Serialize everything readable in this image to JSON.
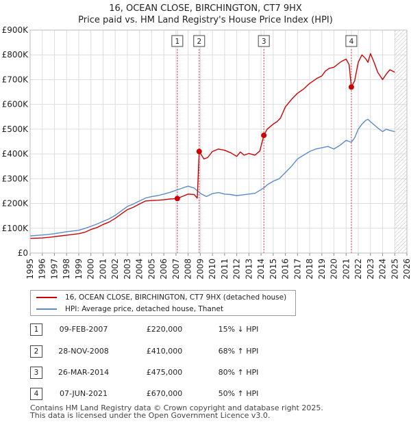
{
  "title_line1": "16, OCEAN CLOSE, BIRCHINGTON, CT7 9HX",
  "title_line2": "Price paid vs. HM Land Registry's House Price Index (HPI)",
  "chart_data": {
    "type": "line",
    "title": "16, OCEAN CLOSE, BIRCHINGTON, CT7 9HX — Price paid vs. HM Land Registry's House Price Index (HPI)",
    "xlabel": "",
    "ylabel": "",
    "xlim": [
      1995,
      2026
    ],
    "ylim": [
      0,
      900000
    ],
    "x_ticks": [
      1995,
      1996,
      1997,
      1998,
      1999,
      2000,
      2001,
      2002,
      2003,
      2004,
      2005,
      2006,
      2007,
      2008,
      2009,
      2010,
      2011,
      2012,
      2013,
      2014,
      2015,
      2016,
      2017,
      2018,
      2019,
      2020,
      2021,
      2022,
      2023,
      2024,
      2025,
      2026
    ],
    "x_tick_labels": [
      "1995",
      "1996",
      "1997",
      "1998",
      "1999",
      "2000",
      "2001",
      "2002",
      "2003",
      "2004",
      "2005",
      "2006",
      "2007",
      "2008",
      "2009",
      "2010",
      "2011",
      "2012",
      "2013",
      "2014",
      "2015",
      "2016",
      "2017",
      "2018",
      "2019",
      "2020",
      "2021",
      "2022",
      "2023",
      "2024",
      "2025",
      "2026"
    ],
    "y_ticks": [
      0,
      100000,
      200000,
      300000,
      400000,
      500000,
      600000,
      700000,
      800000,
      900000
    ],
    "y_tick_labels": [
      "£0",
      "£100K",
      "£200K",
      "£300K",
      "£400K",
      "£500K",
      "£600K",
      "£700K",
      "£800K",
      "£900K"
    ],
    "grid": true,
    "forecast_hatch_from": 2025.0,
    "series": [
      {
        "name": "16, OCEAN CLOSE, BIRCHINGTON, CT7 9HX (detached house)",
        "color": "#cc0000",
        "x": [
          1995.0,
          1995.5,
          1996.0,
          1996.5,
          1997.0,
          1997.5,
          1998.0,
          1998.5,
          1999.0,
          1999.5,
          2000.0,
          2000.5,
          2001.0,
          2001.5,
          2002.0,
          2002.5,
          2003.0,
          2003.5,
          2004.0,
          2004.5,
          2005.0,
          2005.5,
          2006.0,
          2006.5,
          2007.1,
          2007.5,
          2008.0,
          2008.5,
          2008.75,
          2008.91,
          2009.1,
          2009.3,
          2009.6,
          2010.0,
          2010.5,
          2011.0,
          2011.5,
          2012.0,
          2012.3,
          2012.6,
          2013.0,
          2013.5,
          2013.9,
          2014.23,
          2014.5,
          2015.0,
          2015.3,
          2015.6,
          2016.0,
          2016.5,
          2017.0,
          2017.5,
          2018.0,
          2018.3,
          2018.6,
          2019.0,
          2019.3,
          2019.6,
          2020.0,
          2020.3,
          2020.6,
          2021.0,
          2021.25,
          2021.43,
          2021.7,
          2022.0,
          2022.3,
          2022.6,
          2022.8,
          2023.0,
          2023.3,
          2023.6,
          2024.0,
          2024.3,
          2024.6,
          2025.0
        ],
        "y": [
          59000,
          60000,
          61000,
          63000,
          66000,
          69000,
          72000,
          75000,
          78000,
          84000,
          95000,
          103000,
          115000,
          125000,
          140000,
          158000,
          175000,
          185000,
          198000,
          210000,
          212000,
          213000,
          215000,
          218000,
          220000,
          228000,
          238000,
          236000,
          222000,
          410000,
          395000,
          380000,
          385000,
          410000,
          420000,
          415000,
          405000,
          390000,
          408000,
          395000,
          402000,
          395000,
          412000,
          475000,
          500000,
          520000,
          530000,
          545000,
          590000,
          620000,
          645000,
          662000,
          685000,
          695000,
          705000,
          715000,
          735000,
          745000,
          750000,
          762000,
          773000,
          783000,
          760000,
          670000,
          695000,
          770000,
          800000,
          785000,
          770000,
          805000,
          770000,
          730000,
          700000,
          722000,
          740000,
          730000
        ]
      },
      {
        "name": "HPI: Average price, detached house, Thanet",
        "color": "#5b8ac8",
        "x": [
          1995.0,
          1995.5,
          1996.0,
          1996.5,
          1997.0,
          1997.5,
          1998.0,
          1998.5,
          1999.0,
          1999.5,
          2000.0,
          2000.5,
          2001.0,
          2001.5,
          2002.0,
          2002.5,
          2003.0,
          2003.5,
          2004.0,
          2004.5,
          2005.0,
          2005.5,
          2006.0,
          2006.5,
          2007.1,
          2007.5,
          2008.0,
          2008.5,
          2008.91,
          2009.1,
          2009.5,
          2010.0,
          2010.5,
          2011.0,
          2011.5,
          2012.0,
          2012.5,
          2013.0,
          2013.5,
          2014.23,
          2014.5,
          2015.0,
          2015.5,
          2016.0,
          2016.5,
          2017.0,
          2017.5,
          2018.0,
          2018.5,
          2019.0,
          2019.5,
          2020.0,
          2020.5,
          2021.0,
          2021.43,
          2021.7,
          2022.0,
          2022.3,
          2022.6,
          2022.8,
          2023.0,
          2023.3,
          2023.6,
          2024.0,
          2024.3,
          2024.6,
          2025.0
        ],
        "y": [
          69000,
          71000,
          73000,
          75000,
          78000,
          82000,
          86000,
          89000,
          92000,
          99000,
          108000,
          117000,
          128000,
          138000,
          152000,
          170000,
          188000,
          198000,
          210000,
          222000,
          228000,
          232000,
          238000,
          245000,
          255000,
          262000,
          270000,
          262000,
          245000,
          238000,
          228000,
          240000,
          244000,
          238000,
          236000,
          232000,
          235000,
          238000,
          241000,
          263000,
          275000,
          290000,
          300000,
          325000,
          350000,
          380000,
          395000,
          410000,
          420000,
          425000,
          430000,
          420000,
          435000,
          455000,
          447000,
          465000,
          500000,
          520000,
          535000,
          540000,
          530000,
          518000,
          505000,
          490000,
          500000,
          495000,
          490000
        ]
      }
    ],
    "sales": [
      {
        "label": "1",
        "x": 2007.11,
        "y": 220000
      },
      {
        "label": "2",
        "x": 2008.91,
        "y": 410000
      },
      {
        "label": "3",
        "x": 2014.23,
        "y": 475000
      },
      {
        "label": "4",
        "x": 2021.43,
        "y": 670000
      }
    ]
  },
  "legend": {
    "property_label": "16, OCEAN CLOSE, BIRCHINGTON, CT7 9HX (detached house)",
    "hpi_label": "HPI: Average price, detached house, Thanet"
  },
  "transactions": [
    {
      "num": "1",
      "date": "09-FEB-2007",
      "price": "£220,000",
      "hpi": "15% ↓ HPI"
    },
    {
      "num": "2",
      "date": "28-NOV-2008",
      "price": "£410,000",
      "hpi": "68% ↑ HPI"
    },
    {
      "num": "3",
      "date": "26-MAR-2014",
      "price": "£475,000",
      "hpi": "80% ↑ HPI"
    },
    {
      "num": "4",
      "date": "07-JUN-2021",
      "price": "£670,000",
      "hpi": "50% ↑ HPI"
    }
  ],
  "footer": {
    "line1": "Contains HM Land Registry data © Crown copyright and database right 2025.",
    "line2": "This data is licensed under the Open Government Licence v3.0."
  }
}
